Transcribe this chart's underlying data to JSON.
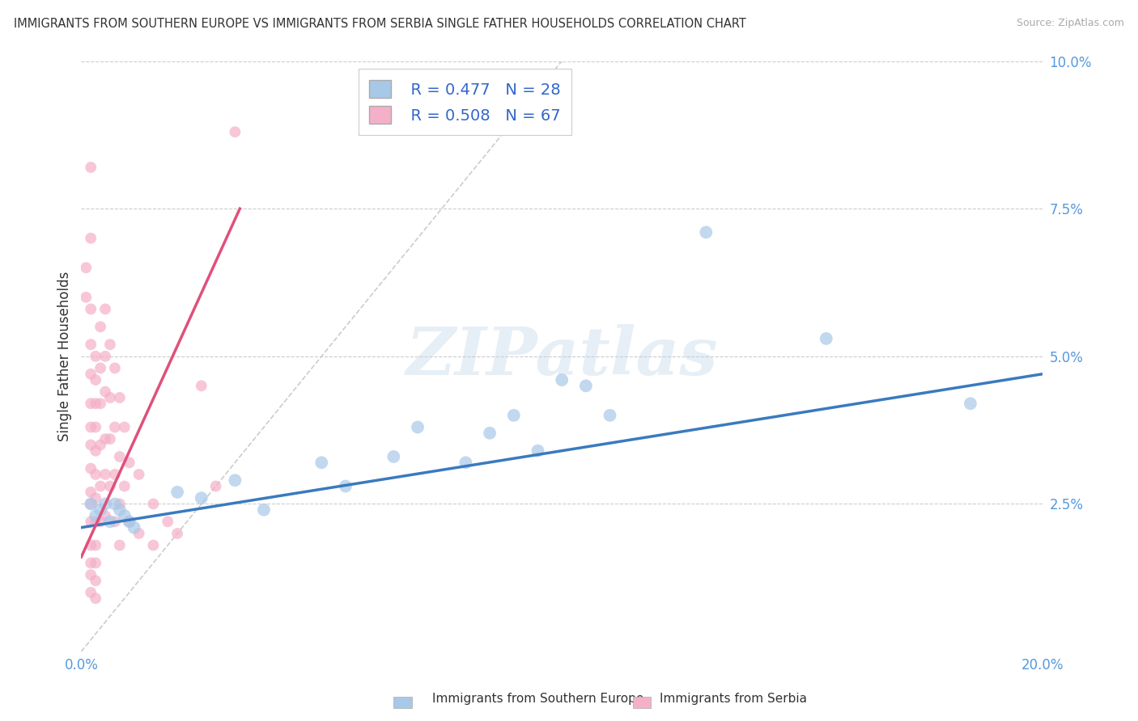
{
  "title": "IMMIGRANTS FROM SOUTHERN EUROPE VS IMMIGRANTS FROM SERBIA SINGLE FATHER HOUSEHOLDS CORRELATION CHART",
  "source": "Source: ZipAtlas.com",
  "ylabel": "Single Father Households",
  "watermark": "ZIPatlas",
  "blue_label": "Immigrants from Southern Europe",
  "pink_label": "Immigrants from Serbia",
  "blue_R": "R = 0.477",
  "blue_N": "N = 28",
  "pink_R": "R = 0.508",
  "pink_N": "N = 67",
  "blue_color": "#a8c8e8",
  "pink_color": "#f4b0c8",
  "blue_line_color": "#3a7abf",
  "pink_line_color": "#e0507a",
  "blue_scatter": [
    [
      0.002,
      0.025
    ],
    [
      0.003,
      0.023
    ],
    [
      0.004,
      0.024
    ],
    [
      0.005,
      0.025
    ],
    [
      0.006,
      0.022
    ],
    [
      0.007,
      0.025
    ],
    [
      0.008,
      0.024
    ],
    [
      0.009,
      0.023
    ],
    [
      0.01,
      0.022
    ],
    [
      0.011,
      0.021
    ],
    [
      0.02,
      0.027
    ],
    [
      0.025,
      0.026
    ],
    [
      0.032,
      0.029
    ],
    [
      0.038,
      0.024
    ],
    [
      0.05,
      0.032
    ],
    [
      0.055,
      0.028
    ],
    [
      0.065,
      0.033
    ],
    [
      0.07,
      0.038
    ],
    [
      0.08,
      0.032
    ],
    [
      0.085,
      0.037
    ],
    [
      0.09,
      0.04
    ],
    [
      0.095,
      0.034
    ],
    [
      0.1,
      0.046
    ],
    [
      0.105,
      0.045
    ],
    [
      0.11,
      0.04
    ],
    [
      0.13,
      0.071
    ],
    [
      0.155,
      0.053
    ],
    [
      0.185,
      0.042
    ]
  ],
  "pink_scatter": [
    [
      0.001,
      0.065
    ],
    [
      0.001,
      0.06
    ],
    [
      0.002,
      0.082
    ],
    [
      0.002,
      0.07
    ],
    [
      0.002,
      0.058
    ],
    [
      0.002,
      0.052
    ],
    [
      0.002,
      0.047
    ],
    [
      0.002,
      0.042
    ],
    [
      0.002,
      0.038
    ],
    [
      0.002,
      0.035
    ],
    [
      0.002,
      0.031
    ],
    [
      0.002,
      0.027
    ],
    [
      0.002,
      0.025
    ],
    [
      0.002,
      0.022
    ],
    [
      0.002,
      0.018
    ],
    [
      0.002,
      0.015
    ],
    [
      0.002,
      0.013
    ],
    [
      0.002,
      0.01
    ],
    [
      0.003,
      0.05
    ],
    [
      0.003,
      0.046
    ],
    [
      0.003,
      0.042
    ],
    [
      0.003,
      0.038
    ],
    [
      0.003,
      0.034
    ],
    [
      0.003,
      0.03
    ],
    [
      0.003,
      0.026
    ],
    [
      0.003,
      0.022
    ],
    [
      0.003,
      0.018
    ],
    [
      0.003,
      0.015
    ],
    [
      0.003,
      0.012
    ],
    [
      0.003,
      0.009
    ],
    [
      0.004,
      0.055
    ],
    [
      0.004,
      0.048
    ],
    [
      0.004,
      0.042
    ],
    [
      0.004,
      0.035
    ],
    [
      0.004,
      0.028
    ],
    [
      0.004,
      0.022
    ],
    [
      0.005,
      0.058
    ],
    [
      0.005,
      0.05
    ],
    [
      0.005,
      0.044
    ],
    [
      0.005,
      0.036
    ],
    [
      0.005,
      0.03
    ],
    [
      0.005,
      0.023
    ],
    [
      0.006,
      0.052
    ],
    [
      0.006,
      0.043
    ],
    [
      0.006,
      0.036
    ],
    [
      0.006,
      0.028
    ],
    [
      0.007,
      0.048
    ],
    [
      0.007,
      0.038
    ],
    [
      0.007,
      0.03
    ],
    [
      0.007,
      0.022
    ],
    [
      0.008,
      0.043
    ],
    [
      0.008,
      0.033
    ],
    [
      0.008,
      0.025
    ],
    [
      0.008,
      0.018
    ],
    [
      0.009,
      0.038
    ],
    [
      0.009,
      0.028
    ],
    [
      0.01,
      0.032
    ],
    [
      0.01,
      0.022
    ],
    [
      0.012,
      0.03
    ],
    [
      0.012,
      0.02
    ],
    [
      0.015,
      0.025
    ],
    [
      0.015,
      0.018
    ],
    [
      0.018,
      0.022
    ],
    [
      0.02,
      0.02
    ],
    [
      0.025,
      0.045
    ],
    [
      0.028,
      0.028
    ],
    [
      0.032,
      0.088
    ]
  ],
  "xlim": [
    0,
    0.2
  ],
  "ylim": [
    0,
    0.1
  ],
  "yticks": [
    0.0,
    0.025,
    0.05,
    0.075,
    0.1
  ],
  "ytick_labels": [
    "",
    "2.5%",
    "5.0%",
    "7.5%",
    "10.0%"
  ],
  "xticks": [
    0.0,
    0.05,
    0.1,
    0.15,
    0.2
  ],
  "xtick_labels": [
    "0.0%",
    "",
    "",
    "",
    "20.0%"
  ],
  "ref_line": [
    [
      0.0,
      0.0
    ],
    [
      0.1,
      0.1
    ]
  ],
  "blue_trend_x": [
    0.0,
    0.2
  ],
  "blue_trend_y": [
    0.021,
    0.047
  ],
  "pink_trend_x": [
    0.0,
    0.033
  ],
  "pink_trend_y": [
    0.016,
    0.075
  ]
}
